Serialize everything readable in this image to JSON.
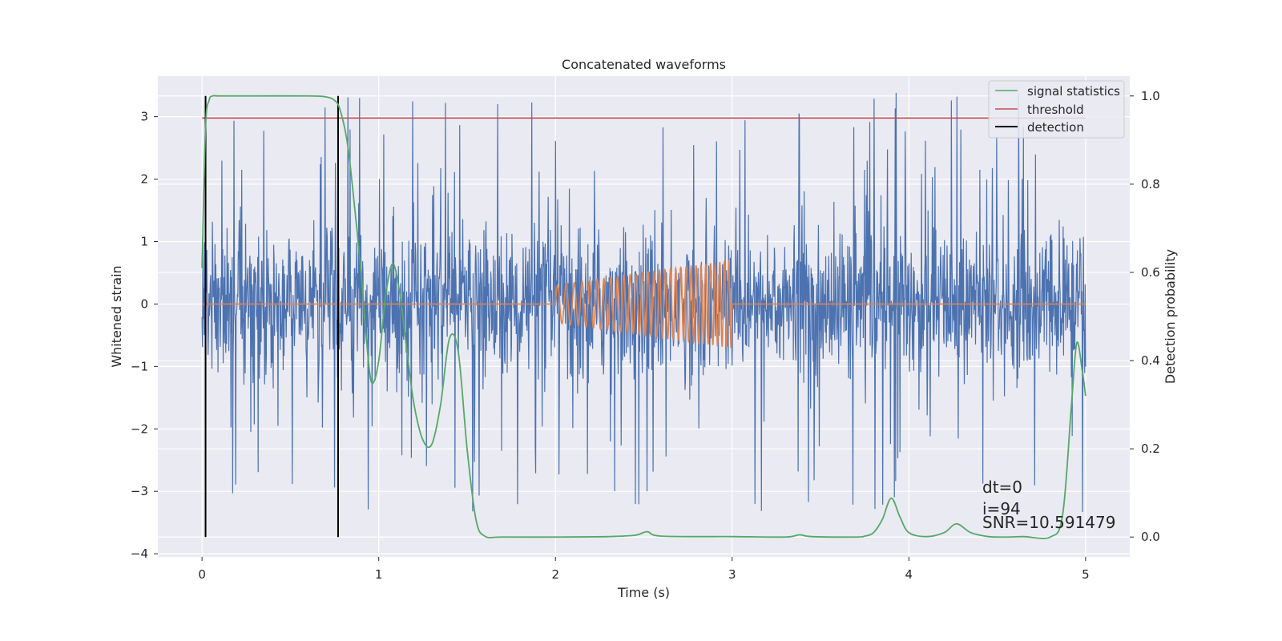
{
  "chart_data": {
    "type": "line",
    "title": "Concatenated waveforms",
    "xlabel": "Time (s)",
    "ylabel_left": "Whitened strain",
    "ylabel_right": "Detection probability",
    "xlim": [
      -0.25,
      5.25
    ],
    "ylim_left": [
      -4.05,
      3.65
    ],
    "ylim_right": [
      -0.045,
      1.045
    ],
    "x_ticks": [
      0,
      1,
      2,
      3,
      4,
      5
    ],
    "y_ticks_left": [
      -4,
      -3,
      -2,
      -1,
      0,
      1,
      2,
      3
    ],
    "y_ticks_right": [
      "0.0",
      "0.2",
      "0.4",
      "0.6",
      "0.8",
      "1.0"
    ],
    "grid": true,
    "legend_position": "top-right",
    "background": "#eaeaf2",
    "series": [
      {
        "name": "",
        "axis": "left",
        "color": "#4c72b0",
        "noise": {
          "t_start": 0,
          "t_end": 5,
          "samples": 2048,
          "typical_amplitude": 0.6,
          "max_abs": 3.45
        }
      },
      {
        "name": "",
        "axis": "left",
        "color": "#dd8452",
        "chirp": {
          "t_start": 2.0,
          "t_end": 3.0,
          "amp_start": 0.3,
          "amp_end": 0.7,
          "f_start": 20,
          "f_end": 40
        }
      },
      {
        "name": "signal statistics",
        "axis": "right",
        "color": "#55a868",
        "x": [
          0.0,
          0.02,
          0.04,
          0.06,
          0.1,
          0.3,
          0.6,
          0.7,
          0.75,
          0.78,
          0.82,
          0.85,
          0.9,
          0.93,
          0.96,
          1.0,
          1.04,
          1.08,
          1.12,
          1.16,
          1.2,
          1.25,
          1.3,
          1.35,
          1.4,
          1.45,
          1.5,
          1.55,
          1.6,
          1.7,
          2.0,
          2.3,
          2.45,
          2.52,
          2.6,
          3.0,
          3.3,
          3.38,
          3.45,
          3.7,
          3.75,
          3.8,
          3.85,
          3.9,
          3.95,
          4.0,
          4.1,
          4.2,
          4.27,
          4.35,
          4.45,
          4.55,
          4.65,
          4.8,
          4.87,
          4.92,
          4.95,
          4.98,
          5.0
        ],
        "y": [
          0.61,
          0.93,
          0.99,
          1.0,
          1.0,
          1.0,
          1.0,
          0.998,
          0.99,
          0.97,
          0.9,
          0.8,
          0.6,
          0.45,
          0.35,
          0.4,
          0.55,
          0.62,
          0.55,
          0.42,
          0.3,
          0.22,
          0.21,
          0.3,
          0.45,
          0.42,
          0.2,
          0.04,
          0.002,
          0.0,
          0.0,
          0.001,
          0.004,
          0.012,
          0.002,
          0.001,
          0.0,
          0.005,
          0.001,
          0.0,
          0.002,
          0.01,
          0.04,
          0.088,
          0.045,
          0.01,
          0.001,
          0.01,
          0.03,
          0.01,
          0.001,
          0.0,
          0.001,
          0.0,
          0.05,
          0.3,
          0.44,
          0.38,
          0.32
        ]
      },
      {
        "name": "threshold",
        "axis": "right",
        "color": "#c44e52",
        "x": [
          0,
          5
        ],
        "y": [
          0.95,
          0.95
        ]
      },
      {
        "name": "detection",
        "axis": "right",
        "color": "#000000",
        "vertical_lines_x": [
          0.02,
          0.77
        ],
        "y_range": [
          0,
          1
        ]
      }
    ],
    "annotations": [
      "dt=0",
      "i=94",
      "SNR=10.591479"
    ]
  }
}
